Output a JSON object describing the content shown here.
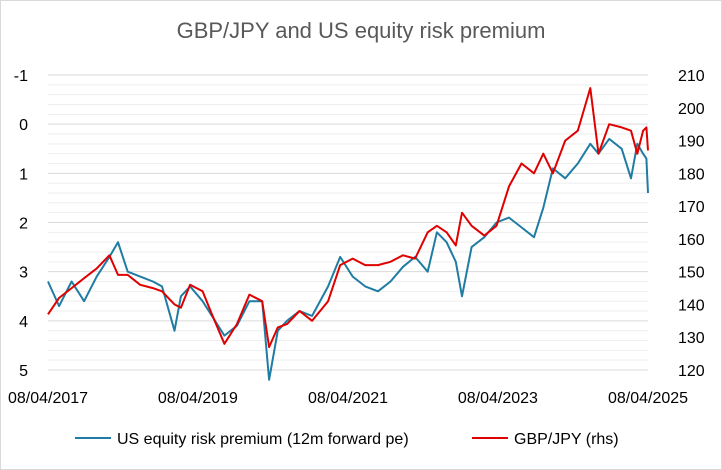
{
  "chart_data": {
    "type": "line",
    "title": "GBP/JPY and US equity risk premium",
    "xlabel": "",
    "ylabel": "",
    "x_ticks": [
      "08/04/2017",
      "08/04/2019",
      "08/04/2021",
      "08/04/2023",
      "08/04/2025"
    ],
    "y_left": {
      "ticks": [
        "-1",
        "0",
        "1",
        "2",
        "3",
        "4",
        "5"
      ],
      "range": [
        -1,
        5
      ],
      "inverted": true
    },
    "y_right": {
      "ticks": [
        "210",
        "200",
        "190",
        "180",
        "170",
        "160",
        "150",
        "140",
        "130",
        "120"
      ],
      "range": [
        120,
        210
      ]
    },
    "grid": true,
    "legend_position": "bottom",
    "series": [
      {
        "name": "US equity risk premium (12m forward pe)",
        "axis": "left",
        "color": "#1f7ca3",
        "points": [
          [
            "2017-04-08",
            3.2
          ],
          [
            "2017-06-01",
            3.7
          ],
          [
            "2017-08-01",
            3.2
          ],
          [
            "2017-10-01",
            3.6
          ],
          [
            "2017-12-01",
            3.1
          ],
          [
            "2018-02-01",
            2.7
          ],
          [
            "2018-03-15",
            2.4
          ],
          [
            "2018-05-01",
            3.0
          ],
          [
            "2018-07-01",
            3.1
          ],
          [
            "2018-09-01",
            3.2
          ],
          [
            "2018-10-15",
            3.3
          ],
          [
            "2018-12-15",
            4.2
          ],
          [
            "2019-01-15",
            3.5
          ],
          [
            "2019-03-01",
            3.3
          ],
          [
            "2019-05-01",
            3.6
          ],
          [
            "2019-06-15",
            3.9
          ],
          [
            "2019-08-15",
            4.3
          ],
          [
            "2019-10-15",
            4.1
          ],
          [
            "2019-12-15",
            3.6
          ],
          [
            "2020-02-15",
            3.6
          ],
          [
            "2020-03-20",
            5.2
          ],
          [
            "2020-05-01",
            4.2
          ],
          [
            "2020-06-15",
            4.0
          ],
          [
            "2020-08-15",
            3.8
          ],
          [
            "2020-10-15",
            3.9
          ],
          [
            "2021-01-01",
            3.3
          ],
          [
            "2021-03-01",
            2.7
          ],
          [
            "2021-05-01",
            3.1
          ],
          [
            "2021-07-01",
            3.3
          ],
          [
            "2021-09-01",
            3.4
          ],
          [
            "2021-11-01",
            3.2
          ],
          [
            "2022-01-01",
            2.9
          ],
          [
            "2022-03-01",
            2.7
          ],
          [
            "2022-05-01",
            3.0
          ],
          [
            "2022-06-15",
            2.2
          ],
          [
            "2022-08-01",
            2.4
          ],
          [
            "2022-09-15",
            2.8
          ],
          [
            "2022-10-15",
            3.5
          ],
          [
            "2022-12-01",
            2.5
          ],
          [
            "2023-02-01",
            2.3
          ],
          [
            "2023-04-01",
            2.0
          ],
          [
            "2023-06-01",
            1.9
          ],
          [
            "2023-08-01",
            2.1
          ],
          [
            "2023-10-01",
            2.3
          ],
          [
            "2023-11-15",
            1.7
          ],
          [
            "2024-01-01",
            0.9
          ],
          [
            "2024-03-01",
            1.1
          ],
          [
            "2024-05-01",
            0.8
          ],
          [
            "2024-07-01",
            0.4
          ],
          [
            "2024-08-10",
            0.6
          ],
          [
            "2024-10-01",
            0.3
          ],
          [
            "2024-12-01",
            0.5
          ],
          [
            "2025-01-15",
            1.1
          ],
          [
            "2025-02-15",
            0.4
          ],
          [
            "2025-03-15",
            0.6
          ],
          [
            "2025-03-31",
            0.7
          ],
          [
            "2025-04-08",
            1.4
          ]
        ]
      },
      {
        "name": "GBP/JPY (rhs)",
        "axis": "right",
        "color": "#e00000",
        "points": [
          [
            "2017-04-08",
            137
          ],
          [
            "2017-06-01",
            142
          ],
          [
            "2017-08-01",
            145
          ],
          [
            "2017-10-01",
            148
          ],
          [
            "2017-12-01",
            151
          ],
          [
            "2018-02-01",
            155
          ],
          [
            "2018-03-15",
            149
          ],
          [
            "2018-05-01",
            149
          ],
          [
            "2018-07-01",
            146
          ],
          [
            "2018-09-01",
            145
          ],
          [
            "2018-10-15",
            144
          ],
          [
            "2018-12-15",
            140
          ],
          [
            "2019-01-15",
            139
          ],
          [
            "2019-03-01",
            146
          ],
          [
            "2019-05-01",
            144
          ],
          [
            "2019-06-15",
            137
          ],
          [
            "2019-08-15",
            128
          ],
          [
            "2019-10-15",
            134
          ],
          [
            "2019-12-15",
            143
          ],
          [
            "2020-02-15",
            141
          ],
          [
            "2020-03-20",
            127
          ],
          [
            "2020-05-01",
            133
          ],
          [
            "2020-06-15",
            134
          ],
          [
            "2020-08-15",
            138
          ],
          [
            "2020-10-15",
            135
          ],
          [
            "2021-01-01",
            141
          ],
          [
            "2021-03-01",
            152
          ],
          [
            "2021-05-01",
            154
          ],
          [
            "2021-07-01",
            152
          ],
          [
            "2021-09-01",
            152
          ],
          [
            "2021-11-01",
            153
          ],
          [
            "2022-01-01",
            155
          ],
          [
            "2022-03-01",
            154
          ],
          [
            "2022-05-01",
            162
          ],
          [
            "2022-06-15",
            164
          ],
          [
            "2022-08-01",
            162
          ],
          [
            "2022-09-15",
            158
          ],
          [
            "2022-10-15",
            168
          ],
          [
            "2022-12-01",
            164
          ],
          [
            "2023-02-01",
            161
          ],
          [
            "2023-04-01",
            164
          ],
          [
            "2023-06-01",
            176
          ],
          [
            "2023-08-01",
            183
          ],
          [
            "2023-10-01",
            180
          ],
          [
            "2023-11-15",
            186
          ],
          [
            "2024-01-01",
            180
          ],
          [
            "2024-03-01",
            190
          ],
          [
            "2024-05-01",
            193
          ],
          [
            "2024-07-01",
            206
          ],
          [
            "2024-08-10",
            186
          ],
          [
            "2024-10-01",
            195
          ],
          [
            "2024-12-01",
            194
          ],
          [
            "2025-01-15",
            193
          ],
          [
            "2025-02-15",
            186
          ],
          [
            "2025-03-15",
            193
          ],
          [
            "2025-03-31",
            194
          ],
          [
            "2025-04-08",
            187
          ]
        ]
      }
    ]
  }
}
